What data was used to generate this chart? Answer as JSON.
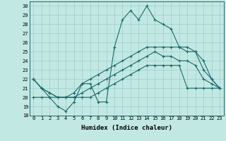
{
  "xlabel": "Humidex (Indice chaleur)",
  "bg_color": "#c2e8e4",
  "line_color": "#1a6b6b",
  "grid_color": "#a0ccc8",
  "xlim": [
    -0.5,
    23.5
  ],
  "ylim": [
    18,
    30.5
  ],
  "xticks": [
    0,
    1,
    2,
    3,
    4,
    5,
    6,
    7,
    8,
    9,
    10,
    11,
    12,
    13,
    14,
    15,
    16,
    17,
    18,
    19,
    20,
    21,
    22,
    23
  ],
  "yticks": [
    18,
    19,
    20,
    21,
    22,
    23,
    24,
    25,
    26,
    27,
    28,
    29,
    30
  ],
  "series": [
    [
      22,
      21,
      20,
      19,
      18.5,
      19.5,
      21.5,
      21.5,
      19.5,
      19.5,
      25.5,
      28.5,
      29.5,
      28.5,
      30,
      28.5,
      28,
      27.5,
      25.5,
      25,
      25,
      24,
      22,
      21
    ],
    [
      22,
      21,
      20.5,
      20,
      20,
      20.5,
      21.5,
      22,
      22.5,
      23,
      23.5,
      24,
      24.5,
      25,
      25.5,
      25.5,
      25.5,
      25.5,
      25.5,
      25.5,
      25,
      23,
      22,
      21
    ],
    [
      22,
      21,
      20.5,
      20,
      20,
      20,
      20.5,
      21,
      21.5,
      22,
      22.5,
      23,
      23.5,
      24,
      24.5,
      25,
      24.5,
      24.5,
      24,
      24,
      23.5,
      22,
      21.5,
      21
    ],
    [
      20,
      20,
      20,
      20,
      20,
      20,
      20,
      20,
      20.5,
      21,
      21.5,
      22,
      22.5,
      23,
      23.5,
      23.5,
      23.5,
      23.5,
      23.5,
      21,
      21,
      21,
      21,
      21
    ]
  ]
}
